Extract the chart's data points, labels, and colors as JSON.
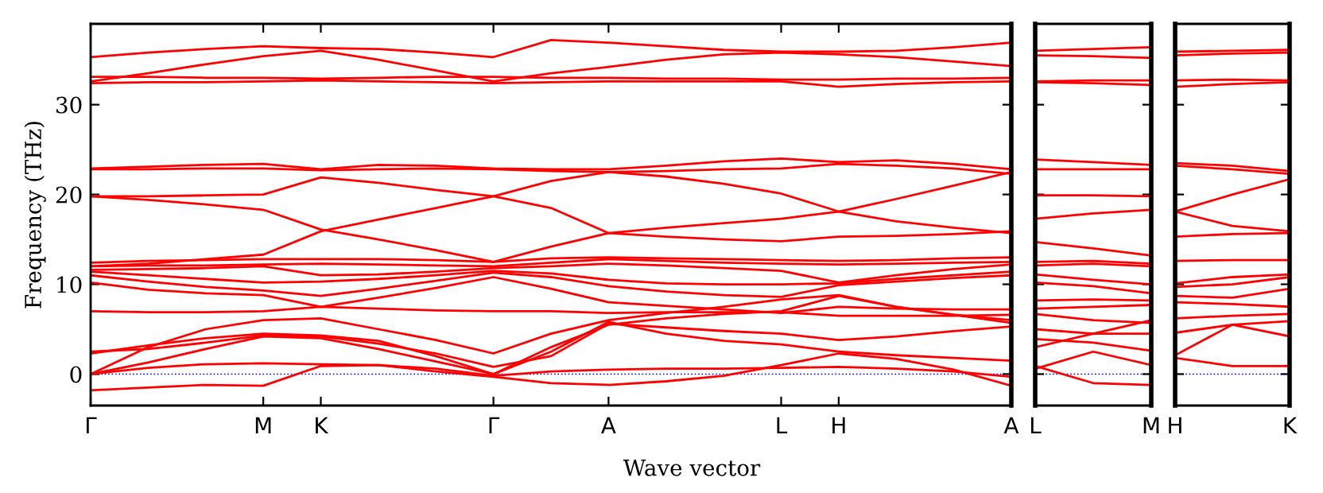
{
  "chart_data": [
    {
      "type": "line",
      "xlabel": "Wave vector",
      "ylabel": "Frequency (THz)",
      "ylim": [
        -3.5,
        39
      ],
      "yticks": [
        0,
        10,
        20,
        30
      ],
      "grid": false,
      "categories": [
        "Γ",
        null,
        null,
        "M",
        "K",
        null,
        null,
        "Γ",
        null,
        "A",
        null,
        null,
        "L",
        "H",
        null,
        null,
        "A"
      ],
      "ref_lines": [
        {
          "axis": "y",
          "value": 0,
          "color": "#0000ff",
          "line_style": "dotted"
        }
      ],
      "series": [
        {
          "color": "#ff0000",
          "values": [
            35.3,
            35.8,
            36.2,
            36.5,
            36.3,
            36.2,
            35.8,
            35.3,
            37.2,
            36.9,
            36.5,
            36.1,
            35.9,
            35.9,
            36.0,
            36.4,
            36.9
          ]
        },
        {
          "color": "#ff0000",
          "values": [
            32.6,
            33.5,
            34.5,
            35.4,
            36.0,
            35.0,
            33.8,
            32.6,
            33.5,
            34.2,
            35.0,
            35.6,
            35.8,
            35.6,
            35.3,
            34.8,
            34.3
          ]
        },
        {
          "color": "#ff0000",
          "values": [
            33.1,
            33.1,
            33.0,
            33.0,
            32.9,
            33.0,
            33.1,
            33.1,
            33.0,
            33.0,
            32.9,
            32.9,
            32.8,
            32.8,
            32.9,
            32.9,
            33.0
          ]
        },
        {
          "color": "#ff0000",
          "values": [
            32.4,
            32.5,
            32.5,
            32.6,
            32.7,
            32.6,
            32.5,
            32.4,
            32.5,
            32.6,
            32.6,
            32.6,
            32.6,
            32.0,
            32.3,
            32.5,
            32.6
          ]
        },
        {
          "color": "#ff0000",
          "values": [
            22.9,
            23.1,
            23.3,
            23.4,
            22.8,
            23.3,
            23.2,
            22.9,
            22.8,
            22.8,
            23.2,
            23.7,
            24.0,
            23.6,
            23.8,
            23.4,
            22.8
          ]
        },
        {
          "color": "#ff0000",
          "values": [
            22.8,
            22.8,
            22.9,
            22.9,
            22.7,
            22.8,
            22.9,
            22.8,
            22.6,
            22.5,
            22.6,
            22.8,
            22.9,
            23.4,
            23.2,
            22.9,
            22.3
          ]
        },
        {
          "color": "#ff0000",
          "values": [
            19.8,
            19.8,
            19.9,
            20.0,
            21.9,
            21.3,
            20.5,
            19.8,
            21.5,
            22.5,
            22.0,
            21.2,
            20.1,
            18.1,
            19.5,
            21.0,
            22.5
          ]
        },
        {
          "color": "#ff0000",
          "values": [
            19.8,
            19.4,
            18.9,
            18.3,
            16.1,
            15.0,
            13.8,
            12.5,
            14.2,
            15.7,
            15.3,
            15.0,
            14.8,
            15.3,
            15.4,
            15.6,
            15.9
          ]
        },
        {
          "color": "#ff0000",
          "values": [
            12.0,
            12.3,
            12.8,
            13.3,
            15.9,
            17.2,
            18.5,
            19.8,
            18.5,
            15.7,
            16.3,
            16.8,
            17.3,
            18.1,
            17.0,
            16.3,
            15.7
          ]
        },
        {
          "color": "#ff0000",
          "values": [
            12.4,
            12.6,
            12.7,
            12.8,
            12.8,
            12.8,
            12.7,
            12.5,
            12.9,
            13.0,
            12.9,
            12.8,
            12.7,
            12.6,
            12.7,
            12.9,
            13.0
          ]
        },
        {
          "color": "#ff0000",
          "values": [
            12.0,
            12.1,
            12.1,
            12.2,
            12.3,
            12.2,
            12.1,
            12.0,
            12.4,
            12.8,
            12.6,
            12.4,
            12.3,
            12.2,
            12.3,
            12.4,
            12.5
          ]
        },
        {
          "color": "#ff0000",
          "values": [
            11.6,
            11.7,
            11.8,
            12.0,
            11.0,
            11.1,
            11.4,
            11.8,
            12.0,
            12.3,
            12.1,
            11.8,
            11.5,
            10.2,
            11.0,
            11.7,
            12.2
          ]
        },
        {
          "color": "#ff0000",
          "values": [
            11.4,
            11.0,
            10.6,
            10.2,
            10.3,
            10.6,
            11.0,
            11.5,
            11.2,
            10.5,
            10.1,
            10.0,
            10.0,
            10.1,
            10.6,
            11.0,
            11.4
          ]
        },
        {
          "color": "#ff0000",
          "values": [
            11.0,
            10.3,
            9.7,
            9.3,
            8.7,
            9.5,
            10.4,
            11.3,
            10.8,
            9.8,
            9.2,
            8.8,
            8.6,
            9.9,
            10.3,
            10.7,
            11.0
          ]
        },
        {
          "color": "#ff0000",
          "values": [
            10.2,
            9.4,
            9.0,
            8.8,
            7.5,
            8.5,
            9.6,
            10.8,
            9.5,
            8.0,
            7.6,
            7.2,
            6.8,
            7.5,
            7.3,
            7.2,
            7.2
          ]
        },
        {
          "color": "#ff0000",
          "values": [
            7.0,
            6.9,
            6.9,
            7.0,
            7.5,
            7.3,
            7.1,
            7.0,
            7.0,
            6.8,
            6.9,
            6.9,
            6.9,
            6.5,
            6.5,
            6.5,
            6.6
          ]
        },
        {
          "color": "#ff0000",
          "values": [
            0.0,
            3.0,
            5.0,
            6.0,
            6.2,
            5.0,
            3.8,
            2.3,
            4.5,
            6.0,
            6.8,
            7.5,
            8.3,
            8.8,
            7.5,
            6.6,
            6.0
          ]
        },
        {
          "color": "#ff0000",
          "values": [
            2.3,
            3.2,
            4.0,
            4.5,
            4.3,
            3.7,
            2.0,
            0.0,
            3.0,
            5.5,
            6.2,
            6.7,
            7.0,
            8.7,
            7.5,
            6.6,
            5.7
          ]
        },
        {
          "color": "#ff0000",
          "values": [
            2.5,
            2.8,
            3.5,
            4.3,
            4.2,
            3.4,
            2.3,
            0.8,
            2.0,
            5.6,
            5.2,
            4.8,
            4.5,
            3.8,
            4.2,
            4.8,
            5.3
          ]
        },
        {
          "color": "#ff0000",
          "values": [
            0.0,
            1.3,
            2.8,
            4.2,
            4.0,
            2.8,
            1.4,
            0.0,
            2.5,
            5.8,
            4.5,
            3.7,
            3.3,
            2.5,
            2.1,
            1.8,
            1.5
          ]
        },
        {
          "color": "#ff0000",
          "values": [
            0.0,
            0.7,
            1.1,
            1.2,
            1.1,
            1.0,
            0.6,
            -0.2,
            0.3,
            0.5,
            0.6,
            0.6,
            0.7,
            0.8,
            0.6,
            0.3,
            -0.3
          ]
        },
        {
          "color": "#ff0000",
          "values": [
            -1.8,
            -1.5,
            -1.2,
            -1.3,
            0.9,
            1.0,
            0.3,
            -0.3,
            -1.0,
            -1.2,
            -0.8,
            -0.2,
            1.0,
            2.3,
            1.7,
            0.5,
            -1.3
          ]
        }
      ]
    },
    {
      "type": "line",
      "ylim": [
        -3.5,
        39
      ],
      "tick_labels": "x",
      "grid": false,
      "categories": [
        "L",
        null,
        "M"
      ],
      "yticks": [
        {
          "value": 0,
          "label": null
        },
        {
          "value": 10,
          "label": null
        },
        {
          "value": 20,
          "label": null
        },
        {
          "value": 30,
          "label": null
        }
      ],
      "ref_lines": [
        {
          "axis": "y",
          "value": 0,
          "color": "#0000ff",
          "line_style": "dotted"
        }
      ],
      "series": [
        {
          "color": "#ff0000",
          "values": [
            36.0,
            36.2,
            36.4
          ]
        },
        {
          "color": "#ff0000",
          "values": [
            35.5,
            35.4,
            35.2
          ]
        },
        {
          "color": "#ff0000",
          "values": [
            32.6,
            32.7,
            32.7
          ]
        },
        {
          "color": "#ff0000",
          "values": [
            32.5,
            32.4,
            32.2
          ]
        },
        {
          "color": "#ff0000",
          "values": [
            23.9,
            23.6,
            23.3
          ]
        },
        {
          "color": "#ff0000",
          "values": [
            22.8,
            22.8,
            22.8
          ]
        },
        {
          "color": "#ff0000",
          "values": [
            19.9,
            19.9,
            19.8
          ]
        },
        {
          "color": "#ff0000",
          "values": [
            17.3,
            17.9,
            18.3
          ]
        },
        {
          "color": "#ff0000",
          "values": [
            14.7,
            14.0,
            13.2
          ]
        },
        {
          "color": "#ff0000",
          "values": [
            12.5,
            12.6,
            12.3
          ]
        },
        {
          "color": "#ff0000",
          "values": [
            12.1,
            12.3,
            12.0
          ]
        },
        {
          "color": "#ff0000",
          "values": [
            11.1,
            10.5,
            10.0
          ]
        },
        {
          "color": "#ff0000",
          "values": [
            10.2,
            9.8,
            9.0
          ]
        },
        {
          "color": "#ff0000",
          "values": [
            8.2,
            8.3,
            8.2
          ]
        },
        {
          "color": "#ff0000",
          "values": [
            7.3,
            7.5,
            7.7
          ]
        },
        {
          "color": "#ff0000",
          "values": [
            6.7,
            6.0,
            5.7
          ]
        },
        {
          "color": "#ff0000",
          "values": [
            5.0,
            4.5,
            4.5
          ]
        },
        {
          "color": "#ff0000",
          "values": [
            3.9,
            3.5,
            2.6
          ]
        },
        {
          "color": "#ff0000",
          "values": [
            3.0,
            4.5,
            6.0
          ]
        },
        {
          "color": "#ff0000",
          "values": [
            0.9,
            -1.0,
            -1.2
          ]
        },
        {
          "color": "#ff0000",
          "values": [
            0.6,
            2.5,
            1.0
          ]
        }
      ]
    },
    {
      "type": "line",
      "ylim": [
        -3.5,
        39
      ],
      "tick_labels": "x",
      "grid": false,
      "categories": [
        "H",
        null,
        "K"
      ],
      "yticks": [
        {
          "value": 0,
          "label": null
        },
        {
          "value": 10,
          "label": null
        },
        {
          "value": 20,
          "label": null
        },
        {
          "value": 30,
          "label": null
        }
      ],
      "ref_lines": [
        {
          "axis": "y",
          "value": 0,
          "color": "#0000ff",
          "line_style": "dotted"
        }
      ],
      "series": [
        {
          "color": "#ff0000",
          "values": [
            35.9,
            36.0,
            36.1
          ]
        },
        {
          "color": "#ff0000",
          "values": [
            35.5,
            35.7,
            35.8
          ]
        },
        {
          "color": "#ff0000",
          "values": [
            32.7,
            32.8,
            32.7
          ]
        },
        {
          "color": "#ff0000",
          "values": [
            32.0,
            32.3,
            32.5
          ]
        },
        {
          "color": "#ff0000",
          "values": [
            23.5,
            23.2,
            22.6
          ]
        },
        {
          "color": "#ff0000",
          "values": [
            23.2,
            22.8,
            22.3
          ]
        },
        {
          "color": "#ff0000",
          "values": [
            18.1,
            20.0,
            21.7
          ]
        },
        {
          "color": "#ff0000",
          "values": [
            18.1,
            16.5,
            15.9
          ]
        },
        {
          "color": "#ff0000",
          "values": [
            15.3,
            15.6,
            15.7
          ]
        },
        {
          "color": "#ff0000",
          "values": [
            12.6,
            12.7,
            12.7
          ]
        },
        {
          "color": "#ff0000",
          "values": [
            10.1,
            10.8,
            11.1
          ]
        },
        {
          "color": "#ff0000",
          "values": [
            9.7,
            10.0,
            10.8
          ]
        },
        {
          "color": "#ff0000",
          "values": [
            8.7,
            8.5,
            9.5
          ]
        },
        {
          "color": "#ff0000",
          "values": [
            8.0,
            7.8,
            7.5
          ]
        },
        {
          "color": "#ff0000",
          "values": [
            6.2,
            6.5,
            6.7
          ]
        },
        {
          "color": "#ff0000",
          "values": [
            4.6,
            5.5,
            5.9
          ]
        },
        {
          "color": "#ff0000",
          "values": [
            2.1,
            5.5,
            4.2
          ]
        },
        {
          "color": "#ff0000",
          "values": [
            1.8,
            0.9,
            0.9
          ]
        }
      ]
    }
  ]
}
